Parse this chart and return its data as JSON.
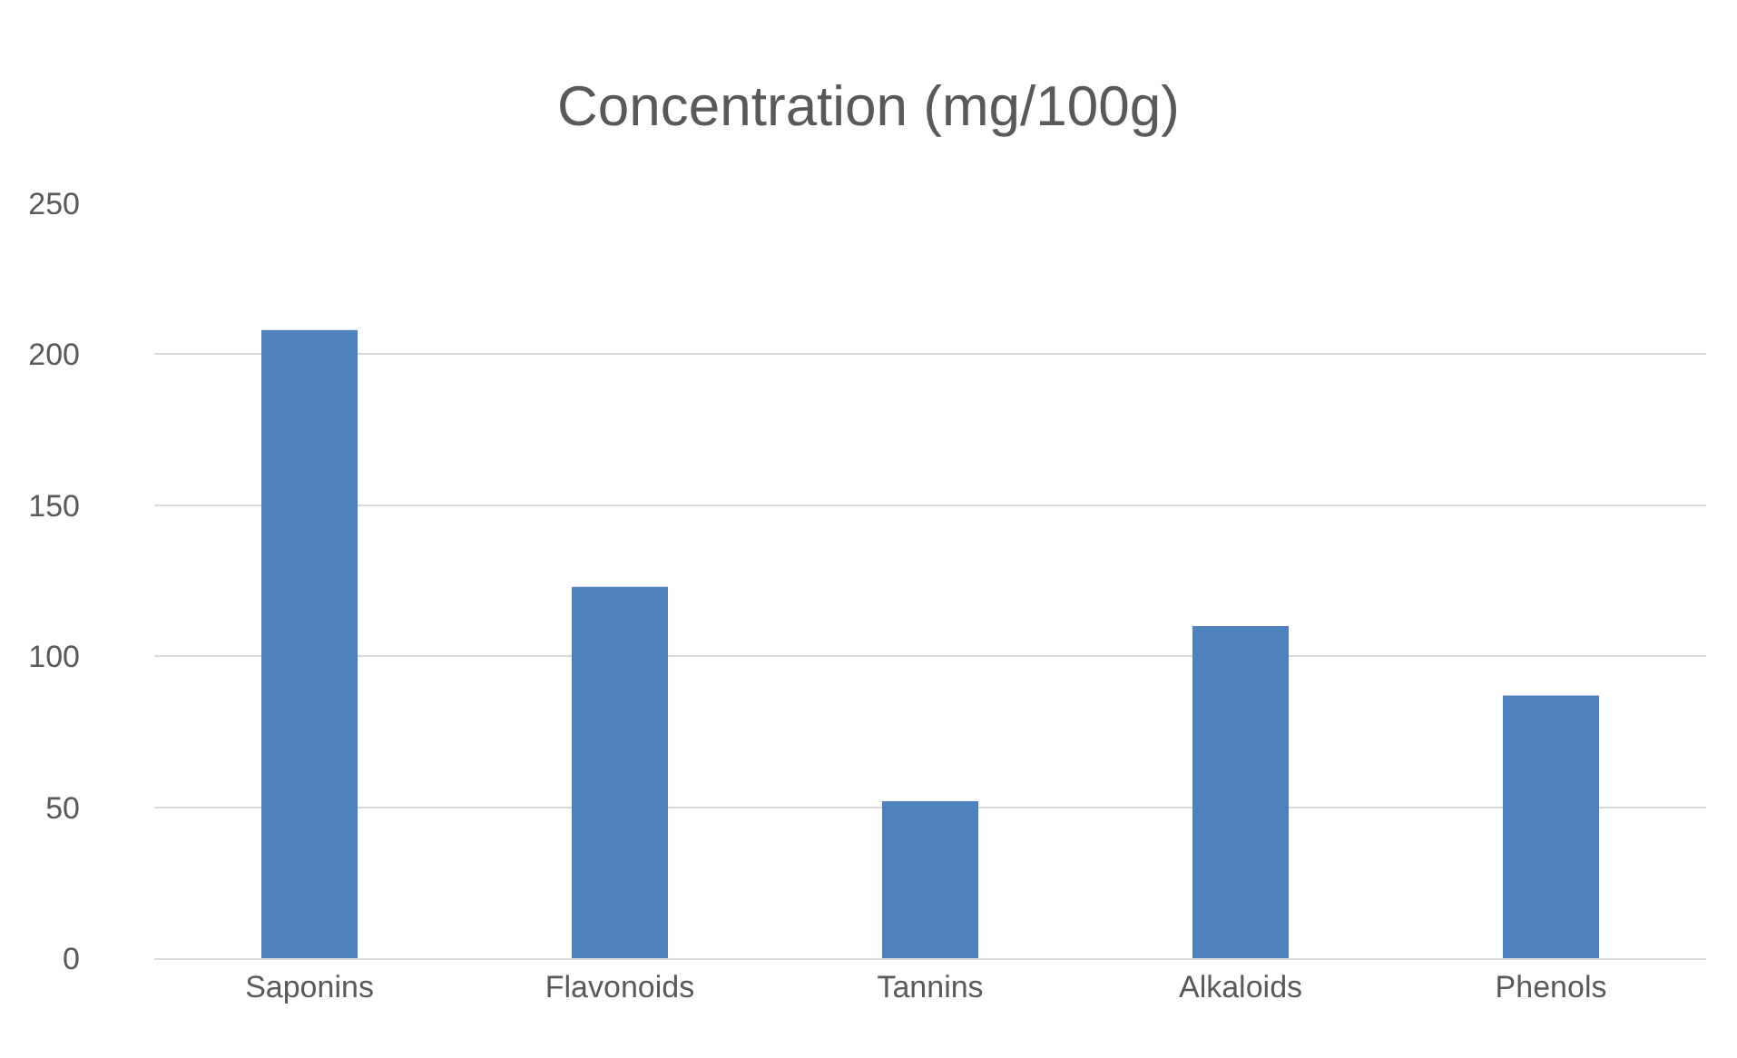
{
  "chart_data": {
    "type": "bar",
    "title": "Concentration (mg/100g)",
    "categories": [
      "Saponins",
      "Flavonoids",
      "Tannins",
      "Alkaloids",
      "Phenols"
    ],
    "values": [
      208,
      123,
      52,
      110,
      87
    ],
    "color": "#4f81bd",
    "ylim": [
      0,
      250
    ],
    "yticks": [
      0,
      50,
      100,
      150,
      200,
      250
    ],
    "grid": "y",
    "legend": false
  }
}
